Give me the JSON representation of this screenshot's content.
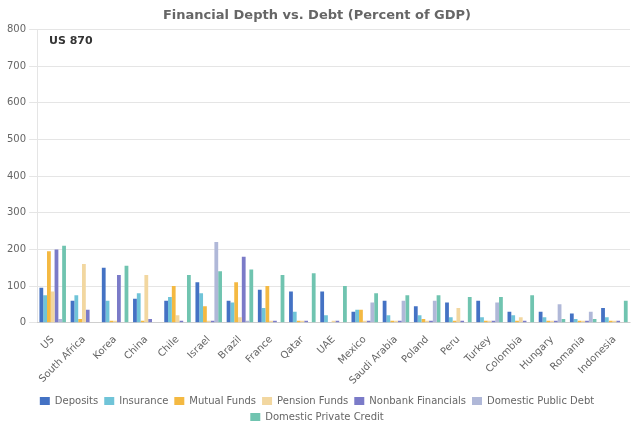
{
  "chart_data": {
    "type": "bar",
    "title": "Financial Depth vs. Debt (Percent of GDP)",
    "annotation": "US 870",
    "categories": [
      "US",
      "South Africa",
      "Korea",
      "China",
      "Chile",
      "Israel",
      "Brazil",
      "France",
      "Qatar",
      "UAE",
      "Mexico",
      "Saudi Arabia",
      "Poland",
      "Peru",
      "Turkey",
      "Colombia",
      "Hungary",
      "Romania",
      "Indonesia"
    ],
    "series": [
      {
        "name": "Deposits",
        "color": "#4472c4",
        "values": [
          95,
          60,
          150,
          65,
          60,
          110,
          60,
          90,
          85,
          85,
          30,
          60,
          45,
          55,
          60,
          30,
          30,
          25,
          40
        ]
      },
      {
        "name": "Insurance",
        "color": "#70c4d8",
        "values": [
          75,
          75,
          60,
          80,
          70,
          80,
          55,
          40,
          30,
          20,
          35,
          20,
          20,
          15,
          15,
          20,
          15,
          10,
          15
        ]
      },
      {
        "name": "Mutual Funds",
        "color": "#f4b942",
        "values": [
          195,
          10,
          5,
          5,
          100,
          45,
          110,
          100,
          5,
          0,
          35,
          5,
          10,
          5,
          5,
          5,
          5,
          5,
          5
        ]
      },
      {
        "name": "Pension Funds",
        "color": "#f2d7a0",
        "values": [
          85,
          160,
          5,
          130,
          20,
          5,
          15,
          5,
          5,
          5,
          5,
          5,
          5,
          40,
          5,
          15,
          5,
          5,
          5
        ]
      },
      {
        "name": "Nonbank Financials",
        "color": "#7b7bc8",
        "values": [
          200,
          35,
          130,
          10,
          5,
          5,
          180,
          5,
          5,
          5,
          5,
          5,
          5,
          5,
          5,
          5,
          5,
          5,
          5
        ]
      },
      {
        "name": "Domestic Public Debt",
        "color": "#b0b8d8",
        "values": [
          10,
          0,
          0,
          0,
          0,
          220,
          5,
          0,
          0,
          0,
          55,
          60,
          60,
          0,
          55,
          0,
          50,
          30,
          0
        ]
      },
      {
        "name": "Domestic Private Credit",
        "color": "#70c4b0",
        "values": [
          210,
          0,
          155,
          0,
          130,
          140,
          145,
          130,
          135,
          100,
          80,
          75,
          75,
          70,
          70,
          75,
          10,
          10,
          60
        ]
      }
    ],
    "ylim": [
      0,
      800
    ],
    "yticks": [
      0,
      100,
      200,
      300,
      400,
      500,
      600,
      700,
      800
    ],
    "grid": true,
    "legend": "bottom"
  }
}
